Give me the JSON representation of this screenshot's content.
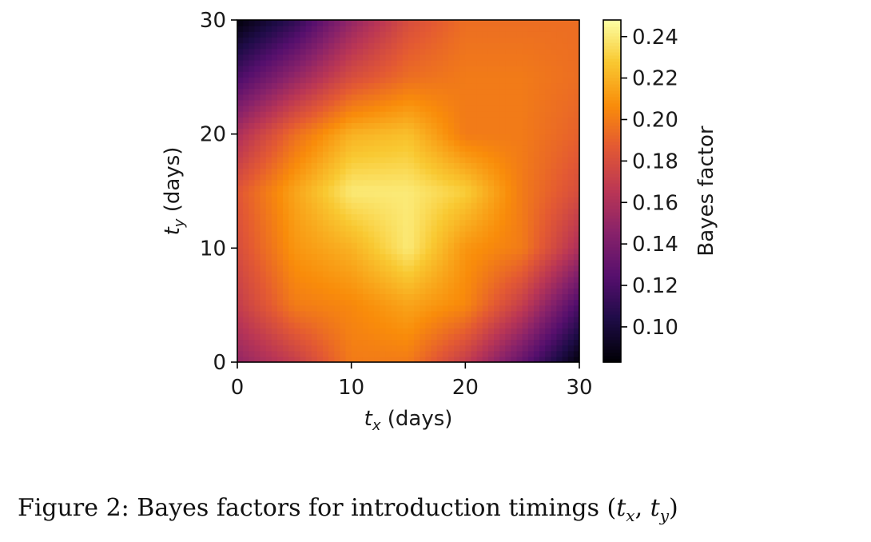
{
  "chart_data": {
    "type": "heatmap",
    "x": [
      0,
      5,
      10,
      15,
      20,
      25,
      30
    ],
    "y": [
      0,
      5,
      10,
      15,
      20,
      25,
      30
    ],
    "z": [
      [
        0.15,
        0.17,
        0.2,
        0.2,
        0.17,
        0.13,
        0.085
      ],
      [
        0.17,
        0.2,
        0.205,
        0.215,
        0.205,
        0.17,
        0.12
      ],
      [
        0.18,
        0.21,
        0.22,
        0.24,
        0.21,
        0.2,
        0.16
      ],
      [
        0.185,
        0.215,
        0.24,
        0.24,
        0.23,
        0.2,
        0.18
      ],
      [
        0.16,
        0.195,
        0.22,
        0.225,
        0.2,
        0.2,
        0.19
      ],
      [
        0.12,
        0.15,
        0.18,
        0.195,
        0.2,
        0.2,
        0.195
      ],
      [
        0.085,
        0.11,
        0.15,
        0.18,
        0.195,
        0.195,
        0.195
      ]
    ],
    "xlim": [
      0,
      30
    ],
    "ylim": [
      0,
      30
    ],
    "xticks": [
      "0",
      "10",
      "20",
      "30"
    ],
    "yticks": [
      "0",
      "10",
      "20",
      "30"
    ],
    "xlabel": {
      "symbol": "t",
      "sub": "x",
      "unit": " (days)"
    },
    "ylabel": {
      "symbol": "t",
      "sub": "y",
      "unit": " (days)"
    },
    "colorbar": {
      "label": "Bayes factor",
      "vmin": 0.083,
      "vmax": 0.248,
      "ticks": [
        0.1,
        0.12,
        0.14,
        0.16,
        0.18,
        0.2,
        0.22,
        0.24
      ],
      "tick_labels": [
        "0.10",
        "0.12",
        "0.14",
        "0.16",
        "0.18",
        "0.20",
        "0.22",
        "0.24"
      ],
      "colormap": "inferno"
    }
  },
  "caption": {
    "prefix": "Figure 2: Bayes factors for introduction timings (",
    "var1": "t",
    "sub1": "x",
    "sep": ", ",
    "var2": "t",
    "sub2": "y",
    "suffix": ")"
  }
}
